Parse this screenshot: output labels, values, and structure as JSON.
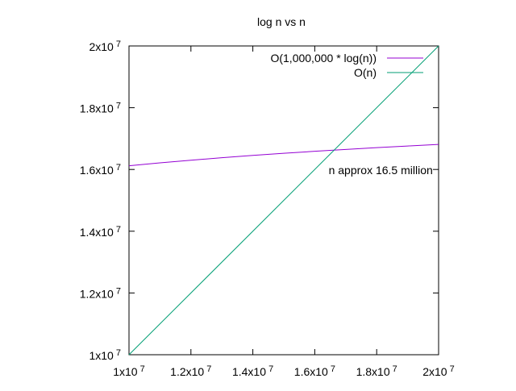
{
  "chart_data": {
    "type": "line",
    "title": "log n vs n",
    "xlabel": "",
    "ylabel": "",
    "xlim": [
      10000000,
      20000000
    ],
    "ylim": [
      10000000,
      20000000
    ],
    "grid": false,
    "legend_position": "top-right",
    "x_ticks": [
      {
        "value": 10000000,
        "mantissa": "1x10",
        "exp": "7"
      },
      {
        "value": 12000000,
        "mantissa": "1.2x10",
        "exp": "7"
      },
      {
        "value": 14000000,
        "mantissa": "1.4x10",
        "exp": "7"
      },
      {
        "value": 16000000,
        "mantissa": "1.6x10",
        "exp": "7"
      },
      {
        "value": 18000000,
        "mantissa": "1.8x10",
        "exp": "7"
      },
      {
        "value": 20000000,
        "mantissa": "2x10",
        "exp": "7"
      }
    ],
    "y_ticks": [
      {
        "value": 10000000,
        "mantissa": "1x10",
        "exp": "7"
      },
      {
        "value": 12000000,
        "mantissa": "1.2x10",
        "exp": "7"
      },
      {
        "value": 14000000,
        "mantissa": "1.4x10",
        "exp": "7"
      },
      {
        "value": 16000000,
        "mantissa": "1.6x10",
        "exp": "7"
      },
      {
        "value": 18000000,
        "mantissa": "1.8x10",
        "exp": "7"
      },
      {
        "value": 20000000,
        "mantissa": "2x10",
        "exp": "7"
      }
    ],
    "series": [
      {
        "name": "O(1,000,000 * log(n))",
        "color": "#9400d3",
        "x": [
          10000000,
          11000000,
          12000000,
          13000000,
          14000000,
          15000000,
          16000000,
          17000000,
          18000000,
          19000000,
          20000000
        ],
        "y": [
          16118100,
          16213400,
          16300400,
          16380500,
          16454600,
          16523600,
          16588100,
          16648700,
          16705900,
          16760000,
          16811200
        ]
      },
      {
        "name": "O(n)",
        "color": "#009e73",
        "x": [
          10000000,
          20000000
        ],
        "y": [
          10000000,
          20000000
        ]
      }
    ],
    "annotations": [
      {
        "text": "n approx 16.5 million",
        "x": 16500000,
        "y": 16000000
      }
    ]
  }
}
